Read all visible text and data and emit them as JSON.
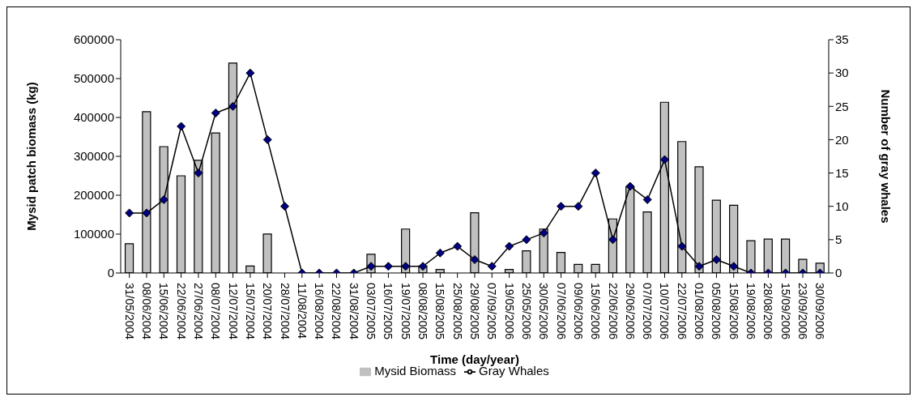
{
  "chart_data": {
    "type": "bar",
    "xlabel": "Time (day/year)",
    "ylabel": "Mysid patch biomass (kg)",
    "y2label": "Number of gray whales",
    "categories": [
      "31/05/2004",
      "08/06/2004",
      "15/06/2004",
      "22/06/2004",
      "27/06/2004",
      "08/07/2004",
      "12/07/2004",
      "15/07/2004",
      "20/07/2004",
      "28/07/2004",
      "11/08/2004",
      "16/08/2004",
      "22/08/2004",
      "31/08/2004",
      "03/07/2005",
      "16/07/2005",
      "19/07/2005",
      "08/08/2005",
      "15/08/2005",
      "25/08/2005",
      "29/08/2005",
      "07/09/2005",
      "19/05/2006",
      "25/05/2006",
      "30/05/2006",
      "07/06/2006",
      "09/06/2006",
      "15/06/2006",
      "22/06/2006",
      "29/06/2006",
      "07/07/2006",
      "10/07/2006",
      "22/07/2006",
      "01/08/2006",
      "05/08/2006",
      "15/08/2006",
      "19/08/2006",
      "28/08/2006",
      "15/09/2006",
      "23/09/2006",
      "30/09/2006"
    ],
    "series": [
      {
        "name": "Mysid Biomass",
        "color": "#c0c0c0",
        "values": [
          75000,
          415000,
          325000,
          250000,
          290000,
          360000,
          540000,
          18000,
          100000,
          0,
          0,
          0,
          0,
          0,
          48000,
          0,
          113000,
          18000,
          9000,
          0,
          155000,
          null,
          9000,
          57000,
          113000,
          53000,
          22000,
          22000,
          139000,
          222000,
          157000,
          439000,
          338000,
          273000,
          187000,
          174000,
          83000,
          87000,
          87000,
          35000,
          25000
        ]
      },
      {
        "name": "Gray Whales",
        "type": "line",
        "axis": "y2",
        "color": "#000080",
        "values": [
          9,
          9,
          11,
          22,
          15,
          24,
          25,
          30,
          20,
          10,
          0,
          0,
          0,
          0,
          1,
          1,
          1,
          1,
          3,
          4,
          2,
          1,
          4,
          5,
          6,
          10,
          10,
          15,
          5,
          13,
          11,
          17,
          4,
          1,
          2,
          1,
          0,
          0,
          0,
          0,
          0
        ]
      }
    ],
    "ylim": [
      0,
      600000
    ],
    "yticks": [
      0,
      100000,
      200000,
      300000,
      400000,
      500000,
      600000
    ],
    "y2lim": [
      0,
      35
    ],
    "y2ticks": [
      0,
      5,
      10,
      15,
      20,
      25,
      30,
      35
    ],
    "grid": false,
    "legend": "bottom",
    "marker": "diamond",
    "line_style": "solid"
  }
}
